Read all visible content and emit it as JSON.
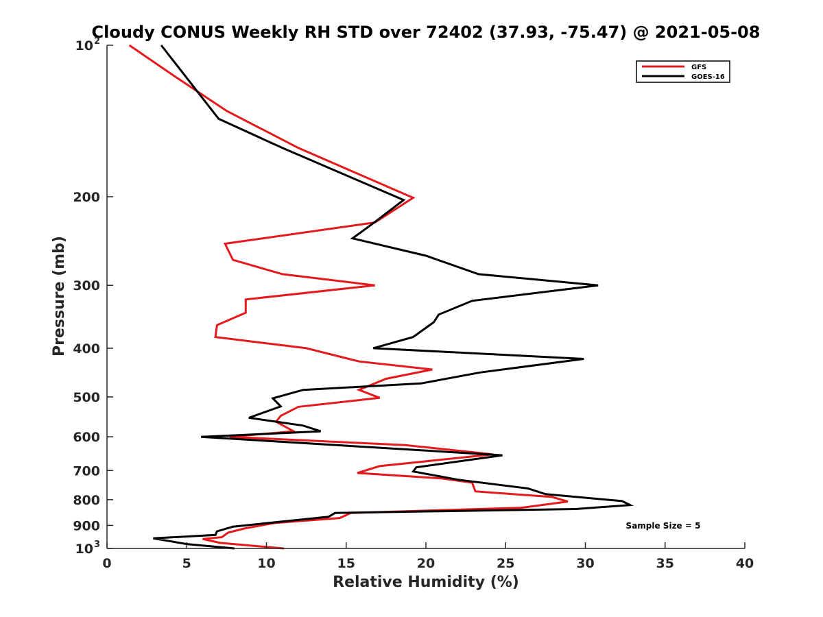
{
  "chart_data": {
    "type": "line",
    "title": "Cloudy CONUS Weekly RH STD over 72402 (37.93, -75.47) @ 2021-05-08",
    "xlabel": "Relative Humidity (%)",
    "ylabel": "Pressure (mb)",
    "xlim": [
      0,
      40
    ],
    "ylim": [
      100,
      1000
    ],
    "y_scale": "log",
    "y_reversed": true,
    "x_ticks": [
      "0",
      "5",
      "10",
      "15",
      "20",
      "25",
      "30",
      "35",
      "40"
    ],
    "y_ticks": [
      {
        "value": 100,
        "base": "10",
        "exp": "2"
      },
      {
        "value": 200,
        "label": "200"
      },
      {
        "value": 300,
        "label": "300"
      },
      {
        "value": 400,
        "label": "400"
      },
      {
        "value": 500,
        "label": "500"
      },
      {
        "value": 600,
        "label": "600"
      },
      {
        "value": 700,
        "label": "700"
      },
      {
        "value": 800,
        "label": "800"
      },
      {
        "value": 900,
        "label": "900"
      },
      {
        "value": 1000,
        "base": "10",
        "exp": "3"
      }
    ],
    "legend_position": "top-right",
    "annotation": "Sample Size = 5",
    "series": [
      {
        "name": "GFS",
        "color": "#e41a1c",
        "points": [
          [
            1.4,
            100
          ],
          [
            4.2,
            115
          ],
          [
            7.5,
            135
          ],
          [
            12.0,
            160
          ],
          [
            19.2,
            201
          ],
          [
            16.8,
            225
          ],
          [
            7.4,
            248
          ],
          [
            7.9,
            267
          ],
          [
            11.0,
            285
          ],
          [
            16.8,
            300
          ],
          [
            8.7,
            320
          ],
          [
            8.7,
            340
          ],
          [
            6.9,
            360
          ],
          [
            6.8,
            380
          ],
          [
            12.5,
            400
          ],
          [
            15.8,
            425
          ],
          [
            20.4,
            441
          ],
          [
            17.5,
            460
          ],
          [
            15.8,
            484
          ],
          [
            17.1,
            502
          ],
          [
            12.0,
            523
          ],
          [
            10.9,
            545
          ],
          [
            10.6,
            560
          ],
          [
            11.7,
            585
          ],
          [
            7.7,
            600
          ],
          [
            18.7,
            623
          ],
          [
            24.2,
            650
          ],
          [
            17.1,
            686
          ],
          [
            15.7,
            708
          ],
          [
            21.0,
            726
          ],
          [
            22.9,
            740
          ],
          [
            23.1,
            770
          ],
          [
            27.9,
            790
          ],
          [
            28.9,
            807
          ],
          [
            26.0,
            830
          ],
          [
            15.3,
            850
          ],
          [
            14.6,
            870
          ],
          [
            10.5,
            890
          ],
          [
            8.6,
            913
          ],
          [
            7.6,
            930
          ],
          [
            7.2,
            950
          ],
          [
            6.0,
            958
          ],
          [
            7.1,
            975
          ],
          [
            11.1,
            1000
          ]
        ]
      },
      {
        "name": "GOES-16",
        "color": "#000000",
        "points": [
          [
            3.4,
            100
          ],
          [
            4.9,
            115
          ],
          [
            7.0,
            140
          ],
          [
            11.0,
            160
          ],
          [
            18.6,
            203
          ],
          [
            16.6,
            227
          ],
          [
            15.4,
            242
          ],
          [
            20.0,
            262
          ],
          [
            23.3,
            285
          ],
          [
            30.8,
            300
          ],
          [
            22.9,
            322
          ],
          [
            20.8,
            343
          ],
          [
            20.5,
            355
          ],
          [
            19.2,
            380
          ],
          [
            16.7,
            400
          ],
          [
            29.9,
            420
          ],
          [
            23.4,
            447
          ],
          [
            19.7,
            470
          ],
          [
            12.3,
            484
          ],
          [
            10.4,
            503
          ],
          [
            10.9,
            522
          ],
          [
            8.9,
            550
          ],
          [
            12.3,
            570
          ],
          [
            13.4,
            585
          ],
          [
            9.5,
            593
          ],
          [
            5.9,
            600
          ],
          [
            23.5,
            649
          ],
          [
            24.8,
            653
          ],
          [
            19.4,
            690
          ],
          [
            19.2,
            703
          ],
          [
            22.0,
            730
          ],
          [
            26.4,
            760
          ],
          [
            27.5,
            780
          ],
          [
            32.3,
            805
          ],
          [
            32.8,
            820
          ],
          [
            29.4,
            835
          ],
          [
            14.3,
            850
          ],
          [
            13.9,
            865
          ],
          [
            7.9,
            905
          ],
          [
            6.9,
            925
          ],
          [
            6.8,
            940
          ],
          [
            2.9,
            955
          ],
          [
            5.0,
            980
          ],
          [
            8.0,
            1000
          ]
        ]
      }
    ]
  }
}
